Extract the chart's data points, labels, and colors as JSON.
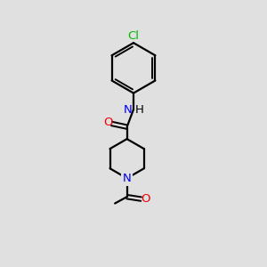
{
  "bg_color": "#e0e0e0",
  "bond_color": "#000000",
  "N_color": "#0000ee",
  "O_color": "#ee0000",
  "Cl_color": "#00bb00",
  "line_width": 1.6,
  "font_size": 9.5,
  "xlim": [
    0,
    10
  ],
  "ylim": [
    0,
    12
  ]
}
